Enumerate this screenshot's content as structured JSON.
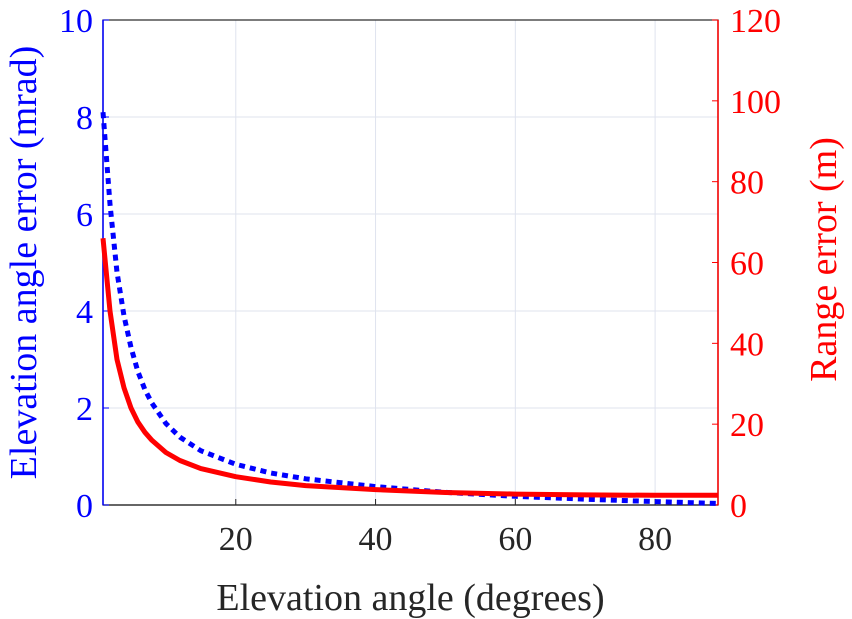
{
  "chart_data": {
    "type": "line",
    "title": "",
    "xlabel": "Elevation angle (degrees)",
    "ylabel_left": "Elevation angle error (mrad)",
    "ylabel_right": "Range error (m)",
    "xlim": [
      1,
      89
    ],
    "ylim_left": [
      0,
      10
    ],
    "ylim_right": [
      0,
      120
    ],
    "xticks": [
      20,
      40,
      60,
      80
    ],
    "yticks_left": [
      0,
      2,
      4,
      6,
      8,
      10
    ],
    "yticks_right": [
      0,
      20,
      40,
      60,
      80,
      100,
      120
    ],
    "grid": true,
    "colors": {
      "left_axis": "#0000ff",
      "right_axis": "#ff0000",
      "grid": "#dfe3ee",
      "x_axis": "#262626"
    },
    "series": [
      {
        "name": "Elevation angle error",
        "axis": "left",
        "style": "dotted",
        "color": "#0000ff",
        "x": [
          1,
          2,
          3,
          4,
          5,
          6,
          7,
          8,
          10,
          12,
          15,
          20,
          25,
          30,
          40,
          50,
          60,
          70,
          80,
          89
        ],
        "y": [
          8.1,
          6.2,
          4.8,
          3.9,
          3.25,
          2.75,
          2.38,
          2.1,
          1.68,
          1.4,
          1.12,
          0.84,
          0.66,
          0.54,
          0.38,
          0.26,
          0.18,
          0.12,
          0.07,
          0.03
        ]
      },
      {
        "name": "Range error",
        "axis": "right",
        "style": "solid",
        "color": "#ff0000",
        "x": [
          1,
          2,
          3,
          4,
          5,
          6,
          7,
          8,
          10,
          12,
          15,
          20,
          25,
          30,
          40,
          50,
          60,
          70,
          80,
          89
        ],
        "y": [
          66,
          48,
          36,
          29,
          24,
          20.5,
          18,
          16,
          13,
          11,
          9,
          7,
          5.7,
          4.8,
          3.8,
          3.1,
          2.7,
          2.5,
          2.4,
          2.4
        ]
      }
    ]
  }
}
